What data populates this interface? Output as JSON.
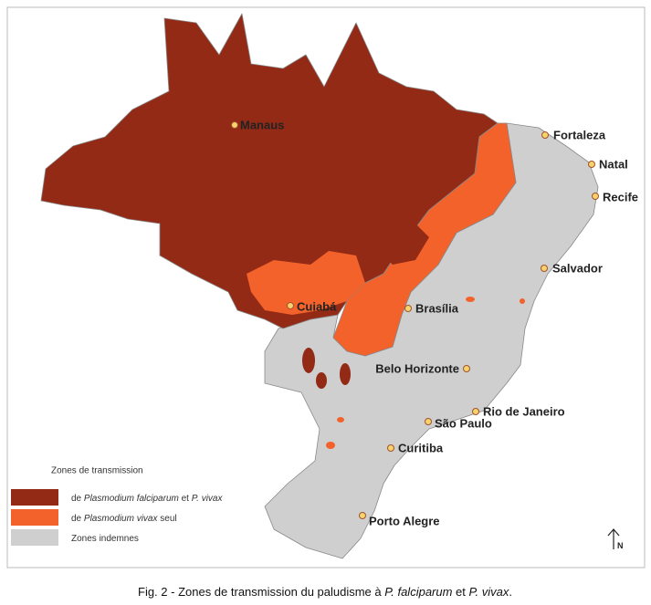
{
  "map": {
    "cities": [
      "Manaus",
      "Fortaleza",
      "Natal",
      "Recife",
      "Salvador",
      "Cuiabá",
      "Brasília",
      "Belo Horizonte",
      "Rio de Janeiro",
      "São Paulo",
      "Curitiba",
      "Porto Alegre"
    ],
    "north": "N"
  },
  "legend": {
    "title": "Zones de transmission",
    "items": [
      {
        "parts": [
          "de ",
          "Plasmodium falciparum",
          " et ",
          "P. vivax"
        ]
      },
      {
        "parts": [
          "de ",
          "Plasmodium vivax",
          " seul"
        ]
      },
      {
        "parts": [
          "Zones indemnes"
        ]
      }
    ]
  },
  "caption": {
    "parts": [
      "Fig. 2 - Zones de transmission du paludisme à ",
      "P. falciparum",
      " et ",
      "P. vivax",
      "."
    ]
  }
}
